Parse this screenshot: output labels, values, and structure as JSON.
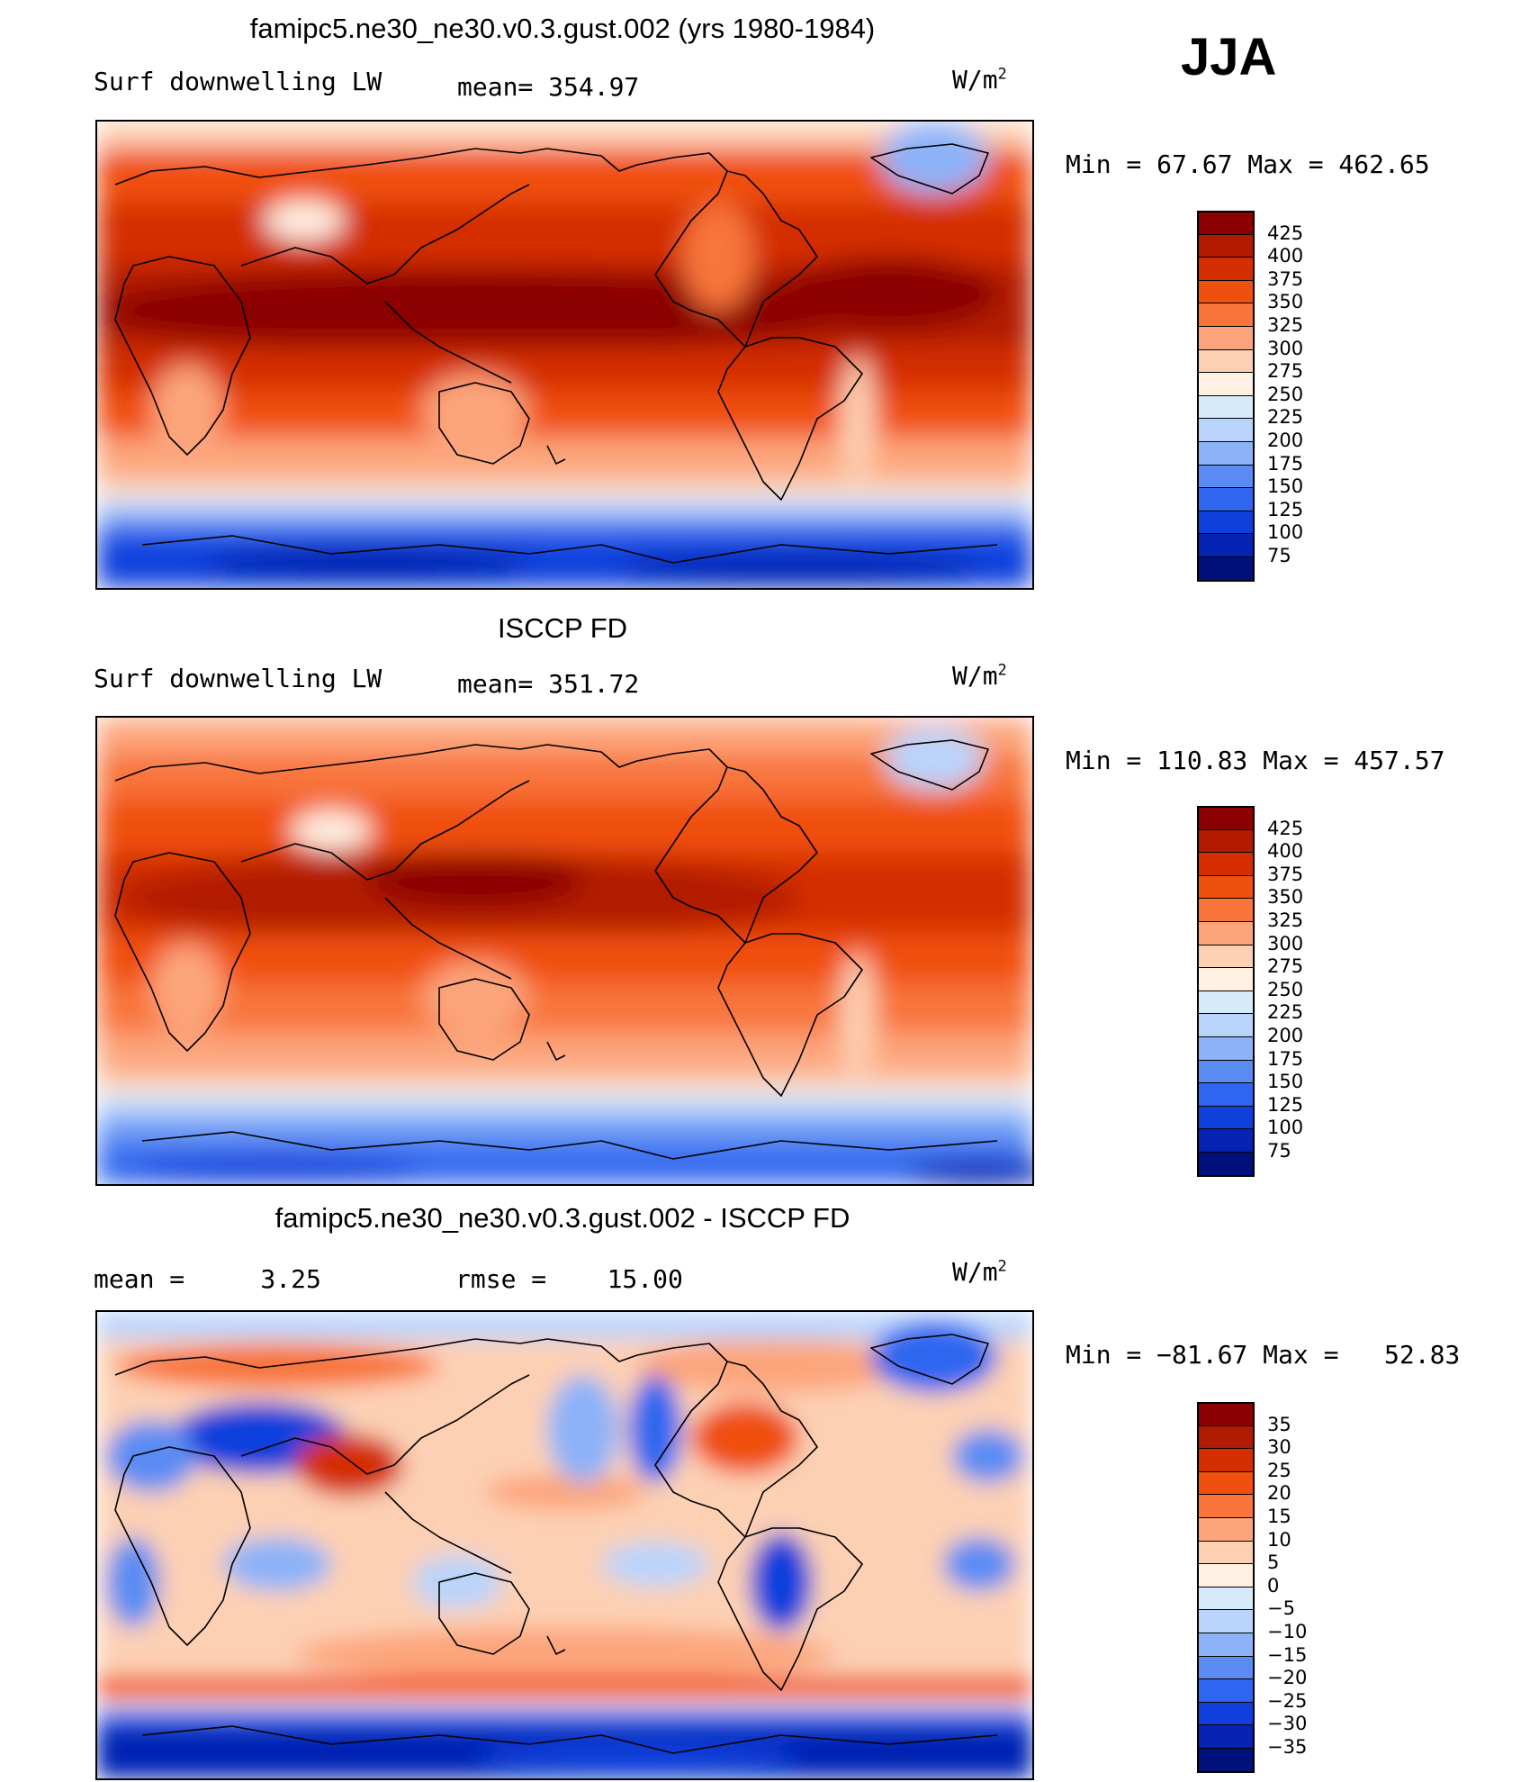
{
  "season": "JJA",
  "chart_data": [
    {
      "type": "heatmap",
      "title": "famipc5.ne30_ne30.v0.3.gust.002 (yrs 1980-1984)",
      "left_label": "Surf downwelling LW",
      "center_label": "mean= 354.97",
      "units": "W/m",
      "units_sup": "2",
      "minmax": "Min =   67.67 Max = 462.65",
      "colorbar": {
        "ticks": [
          "425",
          "400",
          "375",
          "350",
          "325",
          "300",
          "275",
          "250",
          "225",
          "200",
          "175",
          "150",
          "125",
          "100",
          "75"
        ],
        "colors": [
          "#8b0000",
          "#b21a00",
          "#d42e00",
          "#f0500e",
          "#f8743a",
          "#fca57c",
          "#fdd0b4",
          "#fff0e2",
          "#d7eafc",
          "#b9d4fb",
          "#8cb2f8",
          "#5a8cf3",
          "#2e66f0",
          "#1040dc",
          "#0624b4",
          "#00107a"
        ]
      }
    },
    {
      "type": "heatmap",
      "title": "ISCCP FD",
      "left_label": "Surf downwelling LW",
      "center_label": "mean= 351.72",
      "units": "W/m",
      "units_sup": "2",
      "minmax": "Min = 110.83 Max = 457.57",
      "colorbar": {
        "ticks": [
          "425",
          "400",
          "375",
          "350",
          "325",
          "300",
          "275",
          "250",
          "225",
          "200",
          "175",
          "150",
          "125",
          "100",
          "75"
        ],
        "colors": [
          "#8b0000",
          "#b21a00",
          "#d42e00",
          "#f0500e",
          "#f8743a",
          "#fca57c",
          "#fdd0b4",
          "#fff0e2",
          "#d7eafc",
          "#b9d4fb",
          "#8cb2f8",
          "#5a8cf3",
          "#2e66f0",
          "#1040dc",
          "#0624b4",
          "#00107a"
        ]
      }
    },
    {
      "type": "heatmap",
      "title": "famipc5.ne30_ne30.v0.3.gust.002 - ISCCP FD",
      "left_label": "mean =     3.25",
      "center_label": "rmse =    15.00",
      "units": "W/m",
      "units_sup": "2",
      "minmax": "Min = −81.67 Max =   52.83",
      "colorbar": {
        "ticks": [
          "35",
          "30",
          "25",
          "20",
          "15",
          "10",
          "5",
          "0",
          "−5",
          "−10",
          "−15",
          "−20",
          "−25",
          "−30",
          "−35"
        ],
        "colors": [
          "#8b0000",
          "#b21a00",
          "#d42e00",
          "#f0500e",
          "#f8743a",
          "#fca57c",
          "#fdd0b4",
          "#fff0e2",
          "#d7eafc",
          "#b9d4fb",
          "#8cb2f8",
          "#5a8cf3",
          "#2e66f0",
          "#1040dc",
          "#0624b4",
          "#00107a"
        ]
      }
    }
  ]
}
